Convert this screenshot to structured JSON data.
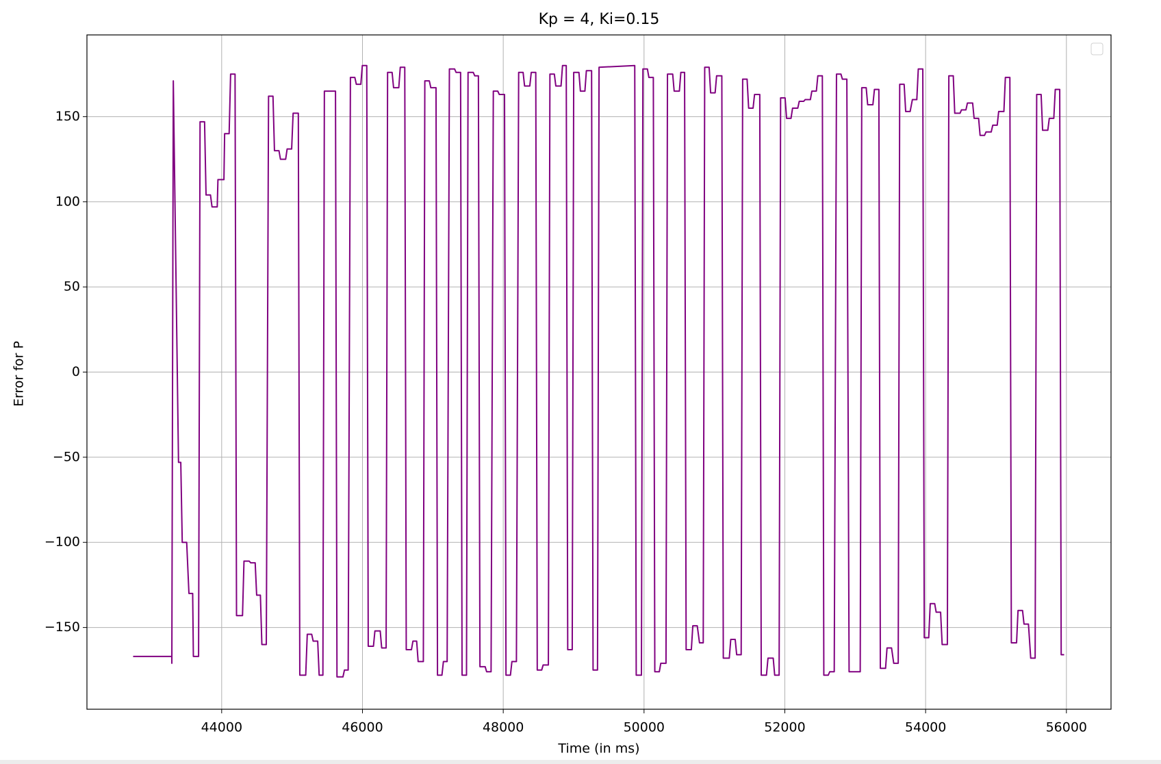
{
  "chart_data": {
    "type": "line",
    "title": "Kp = 4, Ki=0.15",
    "xlabel": "Time (in ms)",
    "ylabel": "Error for P",
    "color": "#800080",
    "grid": true,
    "legend": "upper right",
    "xlim": [
      42086,
      56634
    ],
    "ylim": [
      -198,
      198
    ],
    "xticks": [
      44000,
      46000,
      48000,
      50000,
      52000,
      54000,
      56000
    ],
    "yticks": [
      {
        "value": -150,
        "label": "−150"
      },
      {
        "value": -100,
        "label": "−100"
      },
      {
        "value": -50,
        "label": "−50"
      },
      0,
      50,
      100,
      150
    ],
    "x": [
      42742,
      43292,
      43292,
      43313,
      43387,
      43419,
      43440,
      43503,
      43535,
      43588,
      43598,
      43672,
      43693,
      43757,
      43778,
      43841,
      43863,
      43937,
      43947,
      44032,
      44042,
      44106,
      44127,
      44190,
      44211,
      44296,
      44317,
      44391,
      44412,
      44476,
      44497,
      44550,
      44571,
      44634,
      44666,
      44729,
      44750,
      44814,
      44835,
      44909,
      44930,
      44994,
      45015,
      45089,
      45110,
      45194,
      45216,
      45279,
      45300,
      45364,
      45385,
      45438,
      45459,
      45617,
      45638,
      45723,
      45744,
      45797,
      45829,
      45892,
      45913,
      45977,
      45998,
      46061,
      46082,
      46156,
      46177,
      46252,
      46273,
      46336,
      46357,
      46421,
      46442,
      46516,
      46537,
      46601,
      46622,
      46696,
      46717,
      46770,
      46791,
      46865,
      46886,
      46950,
      46971,
      47045,
      47066,
      47129,
      47150,
      47203,
      47235,
      47309,
      47330,
      47394,
      47415,
      47478,
      47500,
      47574,
      47595,
      47647,
      47669,
      47743,
      47764,
      47827,
      47859,
      47922,
      47944,
      48018,
      48039,
      48102,
      48123,
      48187,
      48219,
      48282,
      48303,
      48377,
      48398,
      48462,
      48483,
      48546,
      48567,
      48641,
      48663,
      48726,
      48747,
      48821,
      48842,
      48895,
      48916,
      48980,
      49001,
      49075,
      49096,
      49160,
      49181,
      49255,
      49276,
      49339,
      49361,
      49868,
      49889,
      49963,
      49984,
      50048,
      50069,
      50132,
      50153,
      50217,
      50238,
      50312,
      50333,
      50407,
      50428,
      50502,
      50523,
      50576,
      50598,
      50672,
      50693,
      50756,
      50788,
      50841,
      50862,
      50925,
      50946,
      51010,
      51031,
      51105,
      51126,
      51211,
      51232,
      51295,
      51316,
      51380,
      51401,
      51464,
      51486,
      51549,
      51570,
      51644,
      51665,
      51739,
      51761,
      51835,
      51856,
      51919,
      51940,
      52004,
      52025,
      52088,
      52110,
      52184,
      52205,
      52268,
      52289,
      52363,
      52384,
      52448,
      52469,
      52533,
      52554,
      52617,
      52638,
      52702,
      52734,
      52797,
      52818,
      52881,
      52913,
      53071,
      53093,
      53156,
      53177,
      53251,
      53273,
      53336,
      53357,
      53431,
      53452,
      53516,
      53547,
      53611,
      53632,
      53695,
      53717,
      53780,
      53812,
      53875,
      53896,
      53960,
      53981,
      54044,
      54066,
      54129,
      54150,
      54213,
      54235,
      54309,
      54330,
      54393,
      54414,
      54489,
      54510,
      54573,
      54594,
      54668,
      54689,
      54753,
      54774,
      54837,
      54858,
      54932,
      54954,
      55017,
      55038,
      55112,
      55133,
      55197,
      55218,
      55292,
      55313,
      55377,
      55398,
      55461,
      55493,
      55556,
      55578,
      55641,
      55662,
      55736,
      55757,
      55821,
      55842,
      55905,
      55926,
      55968
    ],
    "values": [
      -167,
      -167,
      -171,
      171,
      -53,
      -53,
      -100,
      -100,
      -130,
      -130,
      -167,
      -167,
      147,
      147,
      104,
      104,
      97,
      97,
      113,
      113,
      140,
      140,
      175,
      175,
      -143,
      -143,
      -111,
      -111,
      -112,
      -112,
      -131,
      -131,
      -160,
      -160,
      162,
      162,
      130,
      130,
      125,
      125,
      131,
      131,
      152,
      152,
      -178,
      -178,
      -154,
      -154,
      -158,
      -158,
      -178,
      -178,
      165,
      165,
      -179,
      -179,
      -175,
      -175,
      173,
      173,
      169,
      169,
      180,
      180,
      -161,
      -161,
      -152,
      -152,
      -162,
      -162,
      176,
      176,
      167,
      167,
      179,
      179,
      -163,
      -163,
      -158,
      -158,
      -170,
      -170,
      171,
      171,
      167,
      167,
      -178,
      -178,
      -170,
      -170,
      178,
      178,
      176,
      176,
      -178,
      -178,
      176,
      176,
      174,
      174,
      -173,
      -173,
      -176,
      -176,
      165,
      165,
      163,
      163,
      -178,
      -178,
      -170,
      -170,
      176,
      176,
      168,
      168,
      176,
      176,
      -175,
      -175,
      -172,
      -172,
      175,
      175,
      168,
      168,
      180,
      180,
      -163,
      -163,
      176,
      176,
      165,
      165,
      177,
      177,
      -175,
      -175,
      179,
      180,
      -178,
      -178,
      178,
      178,
      173,
      173,
      -176,
      -176,
      -171,
      -171,
      175,
      175,
      165,
      165,
      176,
      176,
      -163,
      -163,
      -149,
      -149,
      -159,
      -159,
      179,
      179,
      164,
      164,
      174,
      174,
      -168,
      -168,
      -157,
      -157,
      -166,
      -166,
      172,
      172,
      155,
      155,
      163,
      163,
      -178,
      -178,
      -168,
      -168,
      -178,
      -178,
      161,
      161,
      149,
      149,
      155,
      155,
      159,
      159,
      160,
      160,
      165,
      165,
      174,
      174,
      -178,
      -178,
      -176,
      -176,
      175,
      175,
      172,
      172,
      -176,
      -176,
      167,
      167,
      157,
      157,
      166,
      166,
      -174,
      -174,
      -162,
      -162,
      -171,
      -171,
      169,
      169,
      153,
      153,
      160,
      160,
      178,
      178,
      -156,
      -156,
      -136,
      -136,
      -141,
      -141,
      -160,
      -160,
      174,
      174,
      152,
      152,
      154,
      154,
      158,
      158,
      149,
      149,
      139,
      139,
      141,
      141,
      145,
      145,
      153,
      153,
      173,
      173,
      -159,
      -159,
      -140,
      -140,
      -148,
      -148,
      -168,
      -168,
      163,
      163,
      142,
      142,
      149,
      149,
      166,
      166,
      -166,
      -166
    ]
  }
}
